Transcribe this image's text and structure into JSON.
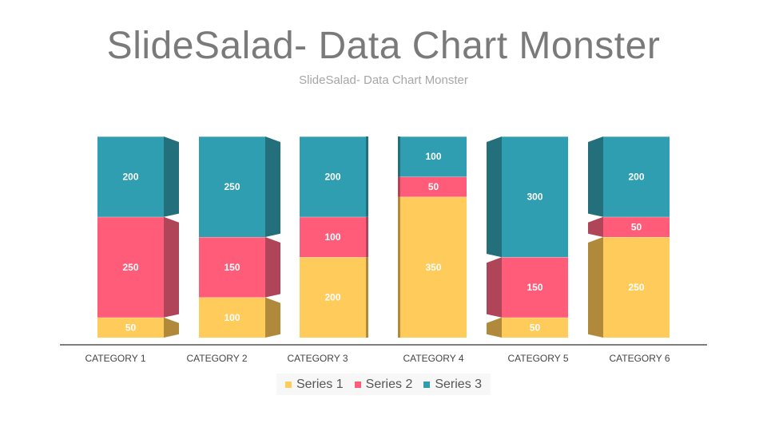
{
  "title": "SlideSalad- Data Chart Monster",
  "subtitle": "SlideSalad- Data Chart Monster",
  "chart_data": {
    "type": "bar",
    "stacked": true,
    "style": "3d",
    "categories": [
      "CATEGORY 1",
      "CATEGORY 2",
      "CATEGORY 3",
      "CATEGORY 4",
      "CATEGORY 5",
      "CATEGORY 6"
    ],
    "series": [
      {
        "name": "Series 1",
        "values": [
          50,
          100,
          200,
          350,
          50,
          250
        ],
        "color": "#FFCB5A",
        "side_color": "#B08A3A"
      },
      {
        "name": "Series 2",
        "values": [
          250,
          150,
          100,
          50,
          150,
          50
        ],
        "color": "#FF5C7A",
        "side_color": "#B04458"
      },
      {
        "name": "Series 3",
        "values": [
          200,
          250,
          200,
          100,
          300,
          200
        ],
        "color": "#2E9EB0",
        "side_color": "#236F7C"
      }
    ],
    "ylim": [
      0,
      500
    ],
    "grid": false,
    "legend_position": "bottom"
  }
}
